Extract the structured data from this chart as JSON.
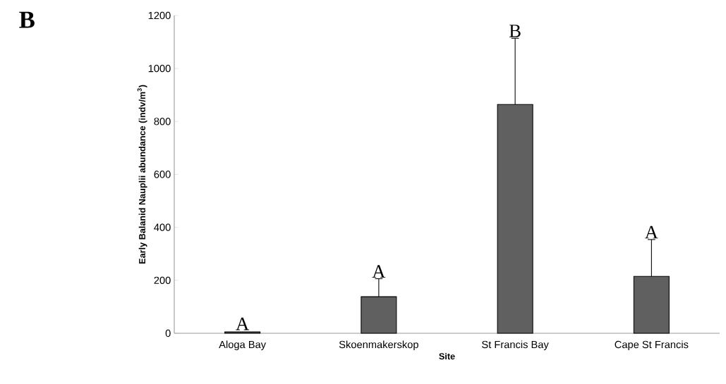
{
  "chart_data": {
    "type": "bar",
    "xlabel": "Site",
    "ylabel": "Early Balanid Nauplii abundance (indv/m$^{3}$)",
    "categories": [
      "Aloga Bay",
      "Skoenmakerskop",
      "St Francis Bay",
      "Cape St Francis"
    ],
    "values": [
      5,
      138,
      864,
      215
    ],
    "errors": [
      null,
      68,
      250,
      139
    ],
    "color": "#606060",
    "ylim": [
      0,
      1200
    ],
    "yticks": [
      0,
      200,
      400,
      600,
      800,
      1000,
      1200
    ],
    "annotations": [
      {
        "text": "A",
        "x": "Aloga Bay",
        "y": 8
      },
      {
        "text": "A",
        "x": "Skoenmakerskop",
        "y": 206
      },
      {
        "text": "B",
        "x": "St Francis Bay",
        "y": 1114
      },
      {
        "text": "A",
        "x": "Cape St Francis",
        "y": 354
      },
      "B"
    ]
  }
}
